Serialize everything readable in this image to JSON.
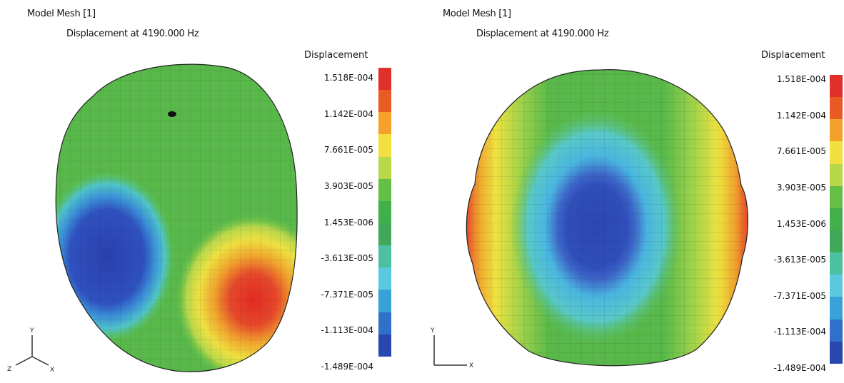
{
  "panels": [
    {
      "title": "Model Mesh [1]",
      "subtitle": "Displacement at 4190.000 Hz",
      "legend_title": "Displacement",
      "axes": {
        "y": "Y",
        "z": "Z",
        "x": "X"
      }
    },
    {
      "title": "Model Mesh [1]",
      "subtitle": "Displacement at 4190.000 Hz",
      "legend_title": "Displacement",
      "axes": {
        "y": "Y",
        "x": "X"
      }
    }
  ],
  "scale_labels": [
    "1.518E-004",
    "1.142E-004",
    "7.661E-005",
    "3.903E-005",
    "1.453E-006",
    "-3.613E-005",
    "-7.371E-005",
    "-1.113E-004",
    "-1.489E-004"
  ],
  "scale_colors": [
    "#e0302a",
    "#ea5a24",
    "#f3a12a",
    "#f2e040",
    "#b8d84a",
    "#63bf45",
    "#42b04a",
    "#3fa85a",
    "#4cc0a0",
    "#5cc8e0",
    "#3aa0d8",
    "#3070c8",
    "#2848b0"
  ]
}
